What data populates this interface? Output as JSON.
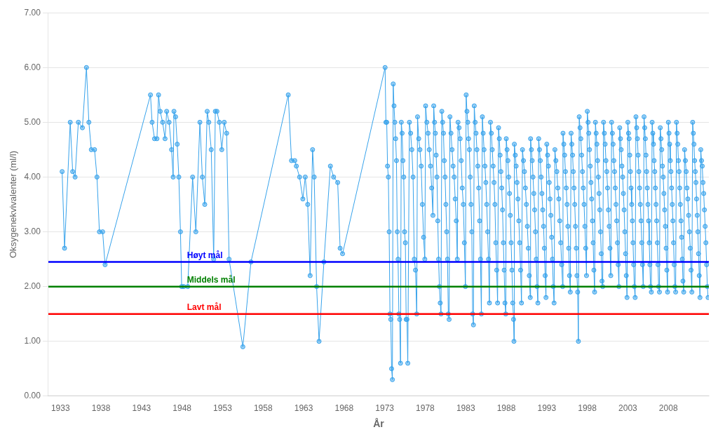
{
  "chart_data": {
    "type": "line",
    "xlabel": "År",
    "ylabel": "Oksygenekvivalenter (ml/l)",
    "xlim": [
      1931.5,
      2013.0
    ],
    "ylim": [
      0.0,
      7.0
    ],
    "xticks": [
      1933,
      1938,
      1943,
      1948,
      1953,
      1958,
      1963,
      1968,
      1973,
      1978,
      1983,
      1988,
      1993,
      1998,
      2003,
      2008
    ],
    "yticks": [
      {
        "value": 0.0,
        "label": "0.00"
      },
      {
        "value": 1.0,
        "label": "1.00"
      },
      {
        "value": 2.0,
        "label": "2.00"
      },
      {
        "value": 3.0,
        "label": "3.00"
      },
      {
        "value": 4.0,
        "label": "4.00"
      },
      {
        "value": 5.0,
        "label": "5.00"
      },
      {
        "value": 6.0,
        "label": "6.00"
      },
      {
        "value": 7.0,
        "label": "7.00"
      }
    ],
    "grid": "y",
    "hlines": [
      {
        "value": 2.45,
        "color": "#0000ff",
        "label": "Høyt mål"
      },
      {
        "value": 2.0,
        "color": "#008000",
        "label": "Middels mål"
      },
      {
        "value": 1.5,
        "color": "#ff0000",
        "label": "Lavt mål"
      }
    ],
    "x": [
      1933.2,
      1933.5,
      1934.2,
      1934.5,
      1934.8,
      1935.2,
      1935.7,
      1936.2,
      1936.5,
      1936.8,
      1937.2,
      1937.5,
      1937.8,
      1938.2,
      1938.5,
      1944.1,
      1944.3,
      1944.6,
      1944.9,
      1945.1,
      1945.3,
      1945.6,
      1945.9,
      1946.1,
      1946.4,
      1946.7,
      1946.9,
      1947.0,
      1947.2,
      1947.4,
      1947.6,
      1947.8,
      1947.95,
      1948.2,
      1948.7,
      1949.3,
      1949.7,
      1950.2,
      1950.5,
      1950.8,
      1951.1,
      1951.3,
      1951.6,
      1951.9,
      1952.1,
      1952.3,
      1952.6,
      1952.9,
      1953.2,
      1953.5,
      1953.8,
      1955.5,
      1956.5,
      1961.1,
      1961.5,
      1961.9,
      1962.1,
      1962.5,
      1962.9,
      1963.2,
      1963.5,
      1963.8,
      1964.1,
      1964.3,
      1964.6,
      1964.9,
      1965.5,
      1966.3,
      1966.7,
      1967.2,
      1967.5,
      1967.8,
      1973.05,
      1973.15,
      1973.25,
      1973.35,
      1973.45,
      1973.55,
      1973.65,
      1973.75,
      1973.85,
      1973.95,
      1974.05,
      1974.15,
      1974.25,
      1974.35,
      1974.45,
      1974.55,
      1974.65,
      1974.75,
      1974.85,
      1974.95,
      1975.05,
      1975.15,
      1975.25,
      1975.35,
      1975.45,
      1975.55,
      1975.65,
      1975.75,
      1975.85,
      1976.05,
      1976.2,
      1976.35,
      1976.5,
      1976.65,
      1976.8,
      1976.95,
      1977.05,
      1977.2,
      1977.35,
      1977.5,
      1977.65,
      1977.8,
      1977.95,
      1978.05,
      1978.2,
      1978.35,
      1978.5,
      1978.65,
      1978.8,
      1978.95,
      1979.05,
      1979.15,
      1979.25,
      1979.35,
      1979.45,
      1979.55,
      1979.65,
      1979.75,
      1979.85,
      1979.95,
      1980.05,
      1980.15,
      1980.25,
      1980.35,
      1980.45,
      1980.55,
      1980.65,
      1980.75,
      1980.85,
      1980.95,
      1981.05,
      1981.18,
      1981.31,
      1981.44,
      1981.57,
      1981.7,
      1981.83,
      1981.96,
      1982.05,
      1982.18,
      1982.31,
      1982.44,
      1982.57,
      1982.7,
      1982.83,
      1982.96,
      1983.05,
      1983.15,
      1983.25,
      1983.35,
      1983.45,
      1983.55,
      1983.65,
      1983.75,
      1983.85,
      1983.95,
      1984.05,
      1984.16,
      1984.27,
      1984.38,
      1984.49,
      1984.6,
      1984.71,
      1984.82,
      1984.93,
      1985.05,
      1985.15,
      1985.26,
      1985.37,
      1985.48,
      1985.59,
      1985.7,
      1985.81,
      1985.92,
      1986.05,
      1986.16,
      1986.27,
      1986.38,
      1986.49,
      1986.6,
      1986.71,
      1986.82,
      1986.93,
      1987.05,
      1987.14,
      1987.24,
      1987.34,
      1987.44,
      1987.54,
      1987.64,
      1987.74,
      1987.84,
      1987.94,
      1988.0,
      1988.1,
      1988.2,
      1988.3,
      1988.4,
      1988.5,
      1988.6,
      1988.7,
      1988.8,
      1988.9,
      1988.95,
      1989.0,
      1989.11,
      1989.22,
      1989.33,
      1989.44,
      1989.55,
      1989.66,
      1989.77,
      1989.88,
      1990.0,
      1990.12,
      1990.24,
      1990.36,
      1990.48,
      1990.6,
      1990.72,
      1990.84,
      1990.96,
      1991.0,
      1991.1,
      1991.2,
      1991.3,
      1991.4,
      1991.5,
      1991.6,
      1991.7,
      1991.8,
      1991.9,
      1992.0,
      1992.1,
      1992.2,
      1992.3,
      1992.4,
      1992.5,
      1992.6,
      1992.7,
      1992.8,
      1992.9,
      1993.0,
      1993.1,
      1993.2,
      1993.3,
      1993.4,
      1993.5,
      1993.6,
      1993.7,
      1993.8,
      1993.9,
      1994.0,
      1994.12,
      1994.24,
      1994.36,
      1994.48,
      1994.6,
      1994.72,
      1994.84,
      1994.96,
      1995.0,
      1995.1,
      1995.2,
      1995.3,
      1995.4,
      1995.5,
      1995.6,
      1995.7,
      1995.8,
      1995.9,
      1996.0,
      1996.09,
      1996.18,
      1996.27,
      1996.36,
      1996.45,
      1996.54,
      1996.63,
      1996.72,
      1996.81,
      1996.9,
      1997.0,
      1997.1,
      1997.2,
      1997.3,
      1997.4,
      1997.5,
      1997.6,
      1997.7,
      1997.8,
      1997.9,
      1998.0,
      1998.09,
      1998.18,
      1998.27,
      1998.36,
      1998.45,
      1998.54,
      1998.63,
      1998.72,
      1998.81,
      1998.9,
      1999.0,
      1999.09,
      1999.18,
      1999.27,
      1999.36,
      1999.45,
      1999.54,
      1999.63,
      1999.72,
      1999.81,
      1999.9,
      2000.0,
      2000.1,
      2000.2,
      2000.3,
      2000.4,
      2000.5,
      2000.6,
      2000.7,
      2000.8,
      2000.9,
      2001.0,
      2001.09,
      2001.18,
      2001.27,
      2001.36,
      2001.45,
      2001.54,
      2001.63,
      2001.72,
      2001.81,
      2001.9,
      2002.0,
      2002.09,
      2002.18,
      2002.27,
      2002.36,
      2002.45,
      2002.54,
      2002.63,
      2002.72,
      2002.81,
      2002.9,
      2003.0,
      2003.08,
      2003.16,
      2003.24,
      2003.32,
      2003.4,
      2003.48,
      2003.56,
      2003.64,
      2003.72,
      2003.8,
      2003.9,
      2004.0,
      2004.09,
      2004.18,
      2004.27,
      2004.36,
      2004.45,
      2004.54,
      2004.63,
      2004.72,
      2004.81,
      2004.9,
      2005.0,
      2005.08,
      2005.16,
      2005.24,
      2005.32,
      2005.4,
      2005.48,
      2005.56,
      2005.64,
      2005.72,
      2005.8,
      2005.9,
      2006.0,
      2006.08,
      2006.16,
      2006.24,
      2006.32,
      2006.4,
      2006.48,
      2006.56,
      2006.64,
      2006.72,
      2006.8,
      2006.9,
      2007.0,
      2007.09,
      2007.18,
      2007.27,
      2007.36,
      2007.45,
      2007.54,
      2007.63,
      2007.72,
      2007.81,
      2007.9,
      2008.0,
      2008.08,
      2008.16,
      2008.24,
      2008.32,
      2008.4,
      2008.48,
      2008.56,
      2008.64,
      2008.72,
      2008.8,
      2008.9,
      2009.0,
      2009.08,
      2009.16,
      2009.24,
      2009.32,
      2009.4,
      2009.48,
      2009.56,
      2009.64,
      2009.72,
      2009.8,
      2009.9,
      2010.0,
      2010.1,
      2010.2,
      2010.3,
      2010.4,
      2010.5,
      2010.6,
      2010.7,
      2010.8,
      2010.9,
      2011.0,
      2011.08,
      2011.16,
      2011.24,
      2011.32,
      2011.4,
      2011.48,
      2011.56,
      2011.64,
      2011.72,
      2011.81,
      2011.9,
      2012.0,
      2012.09,
      2012.18,
      2012.27,
      2012.36,
      2012.45,
      2012.54,
      2012.63,
      2012.72,
      2012.81,
      2012.9
    ],
    "values": [
      4.1,
      2.7,
      5.0,
      4.1,
      4.0,
      5.0,
      4.9,
      6.0,
      5.0,
      4.5,
      4.5,
      4.0,
      3.0,
      3.0,
      2.4,
      5.5,
      5.0,
      4.7,
      4.7,
      5.5,
      5.2,
      5.0,
      4.7,
      5.2,
      5.0,
      4.5,
      4.0,
      5.2,
      5.1,
      4.6,
      4.0,
      3.0,
      2.0,
      2.0,
      2.0,
      4.0,
      3.0,
      5.0,
      4.0,
      3.5,
      5.2,
      5.0,
      4.5,
      2.5,
      5.2,
      5.2,
      5.0,
      4.5,
      5.0,
      4.8,
      2.5,
      0.9,
      2.45,
      5.5,
      4.3,
      4.3,
      4.2,
      4.0,
      3.6,
      4.0,
      3.5,
      2.2,
      4.5,
      4.0,
      2.0,
      1.0,
      2.45,
      4.2,
      4.0,
      3.9,
      2.7,
      2.6,
      6.0,
      5.0,
      5.0,
      4.2,
      4.0,
      3.0,
      1.5,
      1.4,
      0.5,
      0.3,
      5.7,
      5.3,
      5.0,
      4.7,
      4.3,
      3.0,
      2.5,
      1.5,
      1.4,
      0.6,
      5.0,
      4.8,
      4.3,
      4.0,
      3.0,
      2.8,
      1.4,
      1.4,
      0.6,
      5.0,
      4.8,
      4.5,
      4.0,
      2.5,
      2.3,
      1.5,
      5.1,
      4.7,
      4.5,
      4.2,
      3.5,
      2.9,
      2.5,
      5.3,
      5.0,
      4.8,
      4.5,
      4.2,
      3.8,
      3.3,
      5.3,
      5.0,
      4.8,
      4.4,
      4.0,
      3.2,
      2.5,
      2.0,
      1.7,
      1.5,
      5.2,
      5.0,
      4.8,
      4.3,
      4.0,
      3.5,
      3.0,
      2.5,
      1.5,
      1.4,
      5.1,
      4.8,
      4.5,
      4.2,
      4.0,
      3.6,
      3.2,
      2.5,
      5.0,
      4.9,
      4.7,
      4.3,
      3.8,
      3.5,
      2.8,
      2.0,
      5.5,
      5.2,
      5.0,
      4.7,
      4.5,
      4.0,
      3.5,
      3.0,
      1.5,
      1.3,
      5.3,
      5.0,
      4.8,
      4.5,
      4.2,
      3.8,
      3.2,
      2.5,
      1.5,
      5.1,
      4.8,
      4.5,
      4.2,
      3.9,
      3.5,
      3.0,
      2.5,
      1.7,
      5.0,
      4.8,
      4.5,
      4.2,
      3.9,
      3.5,
      2.8,
      2.3,
      1.7,
      4.9,
      4.7,
      4.4,
      4.1,
      3.8,
      3.4,
      2.8,
      2.3,
      1.7,
      1.5,
      4.7,
      4.5,
      4.3,
      4.0,
      3.7,
      3.3,
      2.8,
      2.3,
      1.7,
      1.4,
      1.0,
      4.6,
      4.4,
      4.2,
      3.9,
      3.6,
      3.2,
      2.8,
      2.3,
      1.7,
      4.5,
      4.3,
      4.1,
      3.8,
      3.5,
      3.1,
      2.7,
      2.2,
      1.8,
      4.7,
      4.5,
      4.3,
      4.0,
      3.7,
      3.4,
      3.0,
      2.5,
      2.0,
      1.7,
      4.7,
      4.5,
      4.3,
      4.0,
      3.7,
      3.4,
      3.1,
      2.7,
      2.2,
      1.8,
      4.6,
      4.4,
      4.2,
      3.9,
      3.6,
      3.3,
      2.9,
      2.5,
      2.0,
      1.7,
      4.5,
      4.3,
      4.1,
      3.8,
      3.6,
      3.2,
      2.8,
      2.4,
      2.0,
      4.8,
      4.6,
      4.4,
      4.1,
      3.8,
      3.5,
      3.1,
      2.7,
      2.2,
      1.9,
      4.8,
      4.6,
      4.4,
      4.1,
      3.8,
      3.5,
      3.1,
      2.7,
      2.2,
      1.9,
      1.0,
      5.1,
      4.9,
      4.7,
      4.4,
      4.1,
      3.8,
      3.5,
      3.1,
      2.7,
      2.2,
      5.2,
      5.0,
      4.8,
      4.5,
      4.2,
      3.9,
      3.6,
      3.2,
      2.8,
      2.3,
      1.9,
      5.0,
      4.8,
      4.6,
      4.3,
      4.0,
      3.7,
      3.4,
      3.0,
      2.6,
      2.1,
      2.0,
      5.0,
      4.8,
      4.6,
      4.3,
      4.1,
      3.8,
      3.4,
      3.1,
      2.7,
      2.2,
      5.0,
      4.8,
      4.6,
      4.3,
      4.1,
      3.8,
      3.5,
      3.2,
      2.8,
      2.4,
      2.0,
      4.9,
      4.7,
      4.5,
      4.2,
      4.0,
      3.7,
      3.4,
      3.0,
      2.6,
      2.2,
      1.8,
      5.0,
      4.8,
      4.7,
      4.4,
      4.1,
      3.8,
      3.5,
      3.2,
      2.8,
      2.4,
      2.0,
      1.8,
      5.1,
      4.9,
      4.7,
      4.4,
      4.1,
      3.8,
      3.5,
      3.2,
      2.8,
      2.4,
      2.0,
      5.1,
      4.9,
      4.7,
      4.4,
      4.1,
      3.8,
      3.5,
      3.2,
      2.8,
      2.4,
      2.0,
      1.9,
      5.0,
      4.8,
      4.6,
      4.3,
      4.1,
      3.8,
      3.5,
      3.2,
      2.8,
      2.4,
      2.0,
      1.9,
      4.9,
      4.7,
      4.5,
      4.2,
      4.0,
      3.7,
      3.4,
      3.1,
      2.7,
      2.3,
      1.9,
      5.0,
      4.8,
      4.6,
      4.3,
      4.1,
      3.8,
      3.5,
      3.2,
      2.8,
      2.4,
      2.0,
      1.9,
      5.0,
      4.8,
      4.6,
      4.3,
      4.1,
      3.8,
      3.5,
      3.2,
      2.9,
      2.5,
      2.1,
      1.9,
      4.5,
      4.3,
      4.1,
      3.8,
      3.6,
      3.3,
      3.0,
      2.7,
      2.3,
      1.9,
      5.0,
      4.8,
      4.6,
      4.3,
      4.1,
      3.9,
      3.6,
      3.3,
      3.0,
      2.6,
      2.2,
      1.8,
      4.5,
      4.3,
      4.2,
      3.9,
      3.7,
      3.4,
      3.1,
      2.8,
      2.4,
      2.0,
      1.8
    ]
  }
}
